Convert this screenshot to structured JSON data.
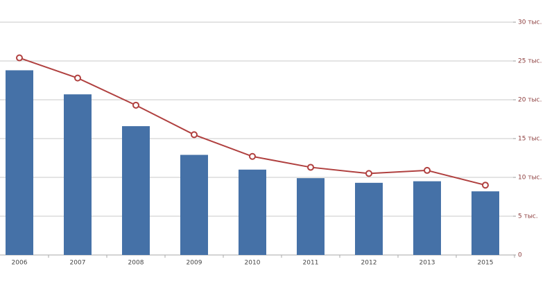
{
  "chart_data": {
    "type": "combo",
    "categories": [
      "2006",
      "2007",
      "2008",
      "2009",
      "2010",
      "2011",
      "2012",
      "2013",
      "2015"
    ],
    "series": [
      {
        "type": "bar",
        "color": "#4571a7",
        "values": [
          23800,
          20700,
          16600,
          12900,
          11000,
          9900,
          9300,
          9500,
          8200
        ]
      },
      {
        "type": "line",
        "color": "#b0403f",
        "values": [
          25400,
          22800,
          19300,
          15500,
          12700,
          11300,
          10500,
          10900,
          9000
        ]
      }
    ],
    "ylim": [
      0,
      30000
    ],
    "yticks": [
      0,
      {
        "value": 5000,
        "label": "5 тыс."
      },
      {
        "value": 10000,
        "label": "10 тыс."
      },
      {
        "value": 15000,
        "label": "15 тыс."
      },
      {
        "value": 20000,
        "label": "20 тыс."
      },
      {
        "value": 25000,
        "label": "25 тыс."
      },
      {
        "value": 30000,
        "label": "30 тыс."
      }
    ],
    "grid": true
  }
}
